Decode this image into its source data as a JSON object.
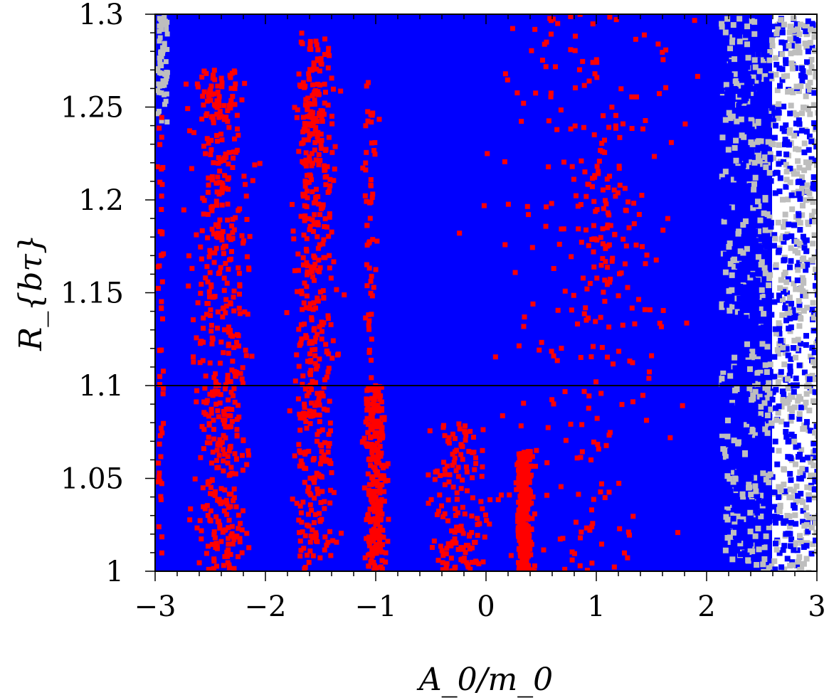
{
  "chart_data": {
    "type": "scatter",
    "title": "",
    "xlabel": "A_0/m_0",
    "ylabel": "R_{bτ}",
    "xlim": [
      -3,
      3
    ],
    "ylim": [
      1,
      1.3
    ],
    "x_ticks": [
      -3,
      -2,
      -1,
      0,
      1,
      2,
      3
    ],
    "y_ticks": [
      1,
      1.05,
      1.1,
      1.15,
      1.2,
      1.25,
      1.3
    ],
    "x_tick_labels": [
      "−3",
      "−2",
      "−1",
      "0",
      "1",
      "2",
      "3"
    ],
    "y_tick_labels": [
      "1",
      "1.05",
      "1.1",
      "1.15",
      "1.2",
      "1.25",
      "1.3"
    ],
    "grid": false,
    "legend": "none",
    "reference_lines": [
      {
        "orientation": "horizontal",
        "y": 1.1,
        "color": "#000000"
      }
    ],
    "background_region": {
      "description": "region densely filled by blue points over gray points",
      "blue_color": "#0000ff",
      "gray_color": "#bebebe"
    },
    "series": [
      {
        "color": "#ff0000",
        "marker": "square",
        "clusters": [
          {
            "x_center": -2.4,
            "x_spread": 0.38,
            "y_min": 1.0,
            "y_max": 1.27,
            "count": 520
          },
          {
            "x_center": -1.55,
            "x_spread": 0.28,
            "y_min": 1.0,
            "y_max": 1.29,
            "count": 450
          },
          {
            "x_center": -1.6,
            "x_spread": 0.12,
            "y_min": 1.24,
            "y_max": 1.27,
            "count": 40
          },
          {
            "x_center": -1.0,
            "x_spread": 0.14,
            "y_min": 1.0,
            "y_max": 1.1,
            "count": 280
          },
          {
            "x_center": -1.05,
            "x_spread": 0.1,
            "y_min": 1.1,
            "y_max": 1.27,
            "count": 55
          },
          {
            "x_center": -2.95,
            "x_spread": 0.05,
            "y_min": 1.0,
            "y_max": 1.25,
            "count": 50
          },
          {
            "x_center": 0.35,
            "x_spread": 0.1,
            "y_min": 1.0,
            "y_max": 1.065,
            "count": 360
          },
          {
            "x_center": -0.25,
            "x_spread": 0.4,
            "y_min": 1.0,
            "y_max": 1.08,
            "count": 150
          },
          {
            "x_center": 1.1,
            "x_spread": 0.35,
            "y_min": 1.15,
            "y_max": 1.24,
            "count": 60
          },
          {
            "x_center": 0.9,
            "x_spread": 1.2,
            "y_min": 1.0,
            "y_max": 1.3,
            "count": 260
          }
        ]
      }
    ]
  }
}
